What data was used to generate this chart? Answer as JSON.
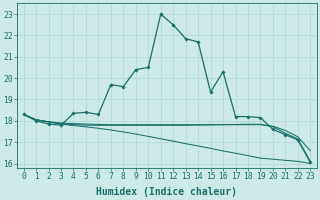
{
  "title": "",
  "xlabel": "Humidex (Indice chaleur)",
  "background_color": "#cceae7",
  "grid_color": "#b0d8d4",
  "line_color": "#1a7068",
  "xlim": [
    -0.5,
    23.5
  ],
  "ylim": [
    15.8,
    23.5
  ],
  "yticks": [
    16,
    17,
    18,
    19,
    20,
    21,
    22,
    23
  ],
  "xticks": [
    0,
    1,
    2,
    3,
    4,
    5,
    6,
    7,
    8,
    9,
    10,
    11,
    12,
    13,
    14,
    15,
    16,
    17,
    18,
    19,
    20,
    21,
    22,
    23
  ],
  "line1_x": [
    0,
    1,
    2,
    3,
    4,
    5,
    6,
    7,
    8,
    9,
    10,
    11,
    12,
    13,
    14,
    15,
    16,
    17,
    18,
    19,
    20,
    21,
    22,
    23
  ],
  "line1_y": [
    18.3,
    18.0,
    17.85,
    17.8,
    18.35,
    18.4,
    18.3,
    19.7,
    19.6,
    20.4,
    20.5,
    23.0,
    22.5,
    21.85,
    21.7,
    19.35,
    20.3,
    18.2,
    18.2,
    18.15,
    17.6,
    17.35,
    17.1,
    16.05
  ],
  "line1_markers": [
    0,
    1,
    2,
    3,
    4,
    5,
    6,
    7,
    8,
    9,
    10,
    11,
    12,
    13,
    14,
    15,
    16,
    17,
    18,
    19,
    20,
    21,
    22,
    23
  ],
  "line2_x": [
    0,
    1,
    2,
    3,
    4,
    5,
    6,
    7,
    8,
    9,
    10,
    11,
    12,
    13,
    14,
    15,
    16,
    17,
    18,
    19,
    20,
    21,
    22,
    23
  ],
  "line2_y": [
    18.3,
    18.05,
    17.95,
    17.9,
    17.87,
    17.85,
    17.83,
    17.82,
    17.82,
    17.82,
    17.82,
    17.82,
    17.82,
    17.82,
    17.82,
    17.82,
    17.82,
    17.82,
    17.82,
    17.82,
    17.75,
    17.55,
    17.25,
    16.6
  ],
  "line3_x": [
    0,
    1,
    2,
    3,
    4,
    5,
    6,
    7,
    8,
    9,
    10,
    11,
    12,
    13,
    14,
    15,
    16,
    17,
    18,
    19,
    20,
    21,
    22,
    23
  ],
  "line3_y": [
    18.3,
    18.05,
    17.95,
    17.87,
    17.82,
    17.8,
    17.79,
    17.79,
    17.79,
    17.79,
    17.79,
    17.79,
    17.79,
    17.79,
    17.8,
    17.81,
    17.82,
    17.83,
    17.84,
    17.84,
    17.72,
    17.42,
    17.15,
    16.1
  ],
  "line4_x": [
    0,
    1,
    2,
    3,
    4,
    5,
    6,
    7,
    8,
    9,
    10,
    11,
    12,
    13,
    14,
    15,
    16,
    17,
    18,
    19,
    20,
    21,
    22,
    23
  ],
  "line4_y": [
    18.3,
    18.05,
    17.95,
    17.85,
    17.78,
    17.72,
    17.65,
    17.57,
    17.48,
    17.38,
    17.27,
    17.16,
    17.05,
    16.93,
    16.82,
    16.71,
    16.59,
    16.48,
    16.37,
    16.25,
    16.2,
    16.15,
    16.1,
    16.0
  ],
  "fontsize_label": 7.0,
  "fontsize_tick": 5.8,
  "linewidth_main": 0.9,
  "linewidth_secondary": 0.75,
  "markersize": 1.8
}
